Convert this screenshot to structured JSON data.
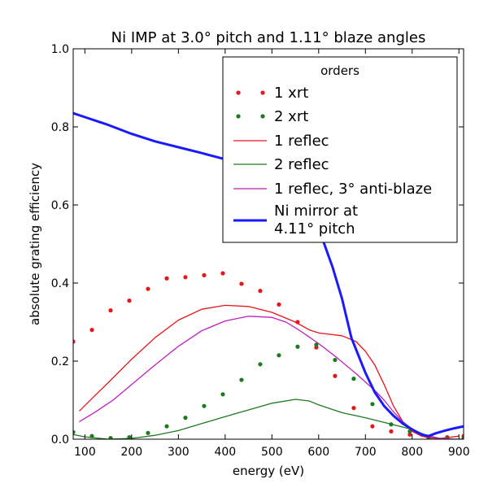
{
  "chart_data": {
    "type": "line",
    "title": "Ni IMP at 3.0° pitch and 1.11° blaze angles",
    "xlabel": "energy (eV)",
    "ylabel": "absolute grating efficiency",
    "xlim": [
      75,
      910
    ],
    "ylim": [
      0,
      1.0
    ],
    "x_ticks": [
      100,
      200,
      300,
      400,
      500,
      600,
      700,
      800,
      900
    ],
    "y_ticks": [
      0.0,
      0.2,
      0.4,
      0.6,
      0.8,
      1.0
    ],
    "y_tick_labels": [
      "0.0",
      "0.2",
      "0.4",
      "0.6",
      "0.8",
      "1.0"
    ],
    "grid": false,
    "legend": {
      "title": "orders",
      "placement": "top-right"
    },
    "series": [
      {
        "name": "1 xrt",
        "style": "dots",
        "color": "#e8151a",
        "x": [
          75,
          115,
          155,
          195,
          235,
          275,
          315,
          355,
          395,
          435,
          475,
          515,
          555,
          595,
          635,
          675,
          715,
          755,
          795,
          835,
          875,
          910
        ],
        "y": [
          0.25,
          0.28,
          0.33,
          0.355,
          0.385,
          0.412,
          0.415,
          0.42,
          0.425,
          0.398,
          0.38,
          0.345,
          0.3,
          0.235,
          0.162,
          0.08,
          0.033,
          0.02,
          0.012,
          0.003,
          0.005,
          0.008
        ]
      },
      {
        "name": "2 xrt",
        "style": "dots",
        "color": "#1e7a1e",
        "x": [
          75,
          115,
          155,
          195,
          235,
          275,
          315,
          355,
          395,
          435,
          475,
          515,
          555,
          595,
          635,
          675,
          715,
          755,
          795,
          835,
          875,
          910
        ],
        "y": [
          0.018,
          0.008,
          0.003,
          0.005,
          0.016,
          0.033,
          0.055,
          0.085,
          0.115,
          0.152,
          0.192,
          0.215,
          0.237,
          0.242,
          0.203,
          0.155,
          0.09,
          0.038,
          0.02,
          0.005,
          0.003,
          0.002
        ]
      },
      {
        "name": "1 reflec",
        "style": "line",
        "color": "#e8151a",
        "x": [
          88,
          120,
          150,
          200,
          250,
          300,
          350,
          400,
          450,
          500,
          550,
          580,
          600,
          650,
          680,
          700,
          720,
          740,
          760,
          780,
          800,
          820,
          840,
          860,
          880,
          900
        ],
        "y": [
          0.072,
          0.11,
          0.145,
          0.205,
          0.26,
          0.305,
          0.333,
          0.343,
          0.34,
          0.325,
          0.3,
          0.28,
          0.272,
          0.265,
          0.25,
          0.225,
          0.19,
          0.14,
          0.085,
          0.045,
          0.02,
          0.008,
          0.003,
          0.002,
          0.005,
          0.008
        ]
      },
      {
        "name": "2 reflec",
        "style": "line",
        "color": "#1e7a1e",
        "x": [
          75,
          100,
          150,
          200,
          250,
          300,
          350,
          400,
          450,
          500,
          550,
          580,
          600,
          650,
          700,
          750,
          800,
          830,
          860,
          890,
          910
        ],
        "y": [
          0.012,
          0.006,
          0.0,
          0.002,
          0.01,
          0.022,
          0.04,
          0.058,
          0.075,
          0.092,
          0.102,
          0.098,
          0.088,
          0.068,
          0.055,
          0.04,
          0.025,
          0.01,
          0.002,
          0.0,
          0.0
        ]
      },
      {
        "name": "1 reflec, 3° anti-blaze",
        "style": "line",
        "color": "#c020c0",
        "x": [
          88,
          120,
          160,
          200,
          250,
          300,
          350,
          400,
          450,
          500,
          530,
          560,
          600,
          640,
          680,
          720,
          740,
          760,
          780,
          800,
          830,
          860,
          890,
          910
        ],
        "y": [
          0.045,
          0.068,
          0.1,
          0.14,
          0.19,
          0.238,
          0.278,
          0.303,
          0.315,
          0.312,
          0.3,
          0.278,
          0.245,
          0.208,
          0.168,
          0.125,
          0.1,
          0.07,
          0.045,
          0.025,
          0.008,
          0.002,
          0.0,
          0.0
        ]
      },
      {
        "name": "Ni mirror at\n4.11° pitch",
        "style": "thick-line",
        "color": "#1a1aff",
        "x": [
          75,
          100,
          150,
          200,
          250,
          300,
          350,
          400,
          450,
          500,
          530,
          550,
          570,
          600,
          630,
          650,
          670,
          700,
          720,
          740,
          760,
          780,
          800,
          820,
          835,
          850,
          870,
          890,
          910
        ],
        "y": [
          0.835,
          0.825,
          0.805,
          0.782,
          0.763,
          0.748,
          0.733,
          0.717,
          0.7,
          0.678,
          0.66,
          0.64,
          0.6,
          0.54,
          0.44,
          0.36,
          0.26,
          0.17,
          0.12,
          0.085,
          0.06,
          0.04,
          0.025,
          0.012,
          0.008,
          0.015,
          0.022,
          0.028,
          0.033
        ]
      }
    ]
  }
}
